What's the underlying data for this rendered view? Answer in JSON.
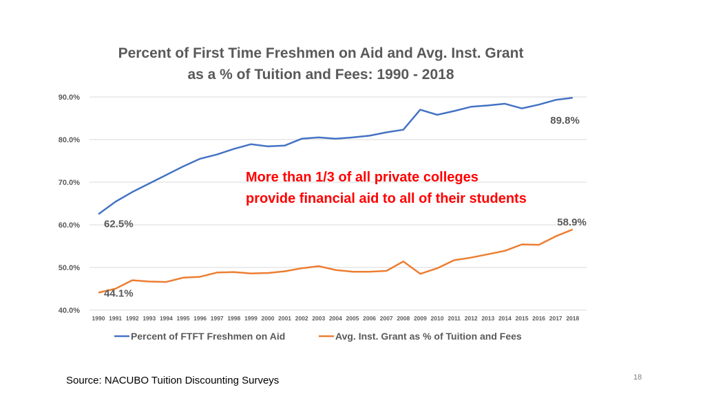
{
  "slide_number": "18",
  "source_note": "Source: NACUBO Tuition Discounting Surveys",
  "callout_lines": [
    "More than 1/3 of all private colleges",
    "provide financial aid to all of their students"
  ],
  "colors": {
    "series_aid": "#4472c4",
    "series_grant": "#ed7d31",
    "callout": "#ff0000",
    "gridline": "#d9d9d9",
    "text": "#595959"
  },
  "chart_data": {
    "type": "line",
    "title_lines": [
      "Percent of First Time Freshmen on Aid and Avg. Inst. Grant",
      "as a % of Tuition and Fees: 1990 - 2018"
    ],
    "xlabel": "",
    "ylabel": "",
    "ylim": [
      40,
      90
    ],
    "y_ticks": [
      "40.0%",
      "50.0%",
      "60.0%",
      "70.0%",
      "80.0%",
      "90.0%"
    ],
    "grid": true,
    "legend_position": "bottom",
    "categories": [
      "1990",
      "1991",
      "1992",
      "1993",
      "1994",
      "1995",
      "1996",
      "1997",
      "1998",
      "1999",
      "2000",
      "2001",
      "2002",
      "2003",
      "2004",
      "2005",
      "2006",
      "2007",
      "2008",
      "2009",
      "2010",
      "2011",
      "2012",
      "2013",
      "2014",
      "2015",
      "2016",
      "2017",
      "2018"
    ],
    "series": [
      {
        "name": "Percent of FTFT Freshmen on Aid",
        "color": "#4472c4",
        "values": [
          62.5,
          65.4,
          67.7,
          69.7,
          71.7,
          73.7,
          75.5,
          76.5,
          77.8,
          78.9,
          78.4,
          78.6,
          80.2,
          80.5,
          80.2,
          80.5,
          80.9,
          81.7,
          82.3,
          87.0,
          85.8,
          86.7,
          87.7,
          88.0,
          88.4,
          87.3,
          88.2,
          89.3,
          89.8
        ],
        "labels": [
          {
            "index": 0,
            "text": "62.5%"
          },
          {
            "index": 28,
            "text": "89.8%"
          }
        ]
      },
      {
        "name": "Avg. Inst. Grant as % of Tuition and Fees",
        "color": "#ed7d31",
        "values": [
          44.1,
          45.0,
          47.0,
          46.7,
          46.6,
          47.6,
          47.8,
          48.8,
          48.9,
          48.6,
          48.7,
          49.1,
          49.8,
          50.3,
          49.4,
          49.0,
          49.0,
          49.2,
          51.4,
          48.5,
          49.8,
          51.7,
          52.3,
          53.1,
          53.9,
          55.4,
          55.3,
          57.3,
          58.9
        ],
        "labels": [
          {
            "index": 0,
            "text": "44.1%"
          },
          {
            "index": 28,
            "text": "58.9%"
          }
        ]
      }
    ]
  }
}
